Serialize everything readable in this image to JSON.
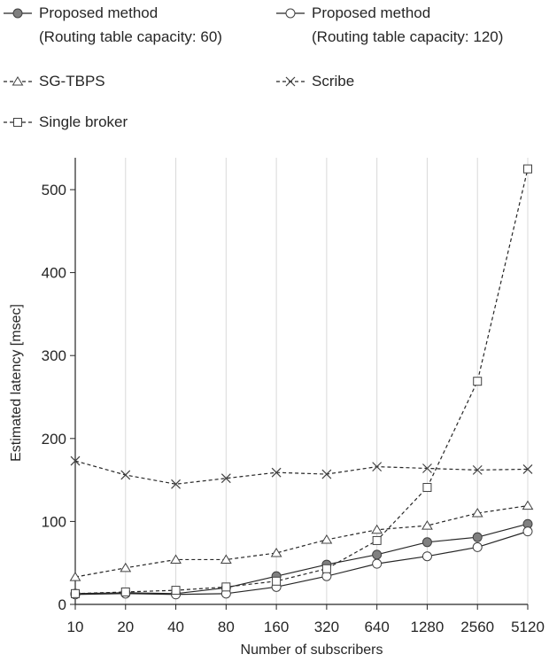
{
  "chart_data": {
    "type": "line",
    "xlabel": "Number of subscribers",
    "ylabel": "Estimated latency [msec]",
    "categories": [
      "10",
      "20",
      "40",
      "80",
      "160",
      "320",
      "640",
      "1280",
      "2560",
      "5120"
    ],
    "ylim": [
      0,
      540
    ],
    "yticks": [
      0,
      100,
      200,
      300,
      400,
      500
    ],
    "grid": "vertical",
    "legend_position": "top",
    "series": [
      {
        "name_line1": "Proposed method",
        "name_line2": "(Routing table capacity: 60)",
        "marker": "filled-circle",
        "dash": "solid",
        "values": [
          13,
          14,
          13,
          20,
          34,
          48,
          60,
          75,
          81,
          97
        ]
      },
      {
        "name_line1": "Proposed method",
        "name_line2": "(Routing table capacity: 120)",
        "marker": "open-circle",
        "dash": "solid",
        "values": [
          12,
          13,
          12,
          13,
          21,
          34,
          49,
          58,
          69,
          88
        ]
      },
      {
        "name_line1": "SG-TBPS",
        "marker": "open-triangle",
        "dash": "dashed",
        "values": [
          33,
          44,
          54,
          54,
          62,
          78,
          90,
          95,
          110,
          119
        ]
      },
      {
        "name_line1": "Scribe",
        "marker": "x",
        "dash": "dashed",
        "values": [
          173,
          156,
          145,
          152,
          159,
          157,
          166,
          164,
          162,
          163
        ]
      },
      {
        "name_line1": "Single broker",
        "marker": "open-square",
        "dash": "dashed",
        "values": [
          13,
          15,
          17,
          21,
          28,
          43,
          77,
          141,
          269,
          525
        ]
      }
    ]
  }
}
